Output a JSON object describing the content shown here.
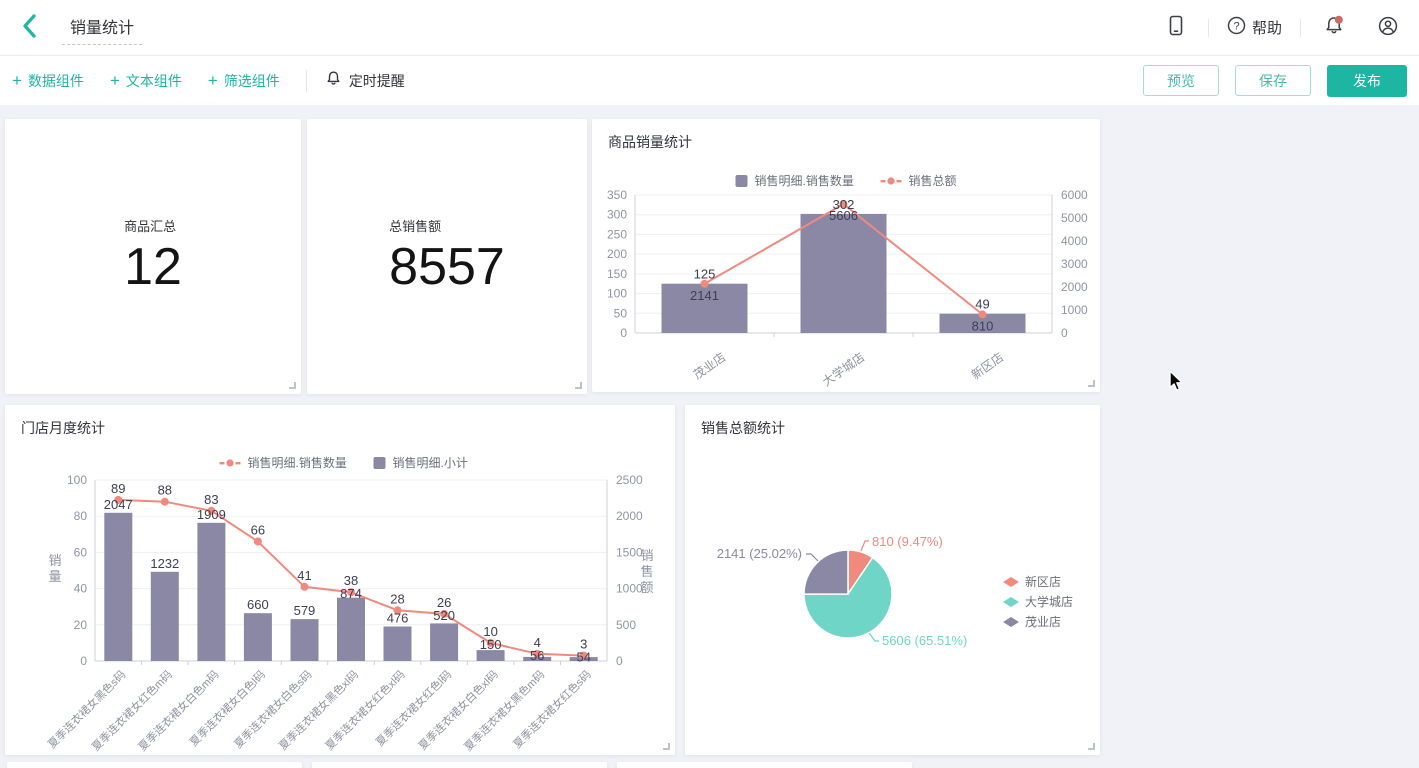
{
  "header": {
    "title": "销量统计",
    "help": "帮助"
  },
  "toolbar": {
    "components": [
      {
        "label": "数据组件"
      },
      {
        "label": "文本组件"
      },
      {
        "label": "筛选组件"
      }
    ],
    "timer": "定时提醒",
    "preview": "预览",
    "save": "保存",
    "publish": "发布"
  },
  "kpis": [
    {
      "title": "商品汇总",
      "value": "12"
    },
    {
      "title": "总销售额",
      "value": "8557"
    }
  ],
  "theme": {
    "accent_teal": "#1cb6a3",
    "bar_purple": "#8b88a6",
    "line_salmon": "#f08a7e",
    "pie_teal": "#6fd5c6",
    "notification_red": "#cf6a64",
    "canvas_bg": "#f1f2f7"
  },
  "chart_data": [
    {
      "id": "product-sales",
      "type": "bar",
      "title": "商品销量统计",
      "categories": [
        "茂业店",
        "大学城店",
        "新区店"
      ],
      "series": [
        {
          "name": "销售明细.销售数量",
          "type": "bar",
          "axis": "left",
          "color": "#8b88a6",
          "values": [
            125,
            302,
            49
          ]
        },
        {
          "name": "销售总额",
          "type": "line",
          "axis": "right",
          "color": "#f08a7e",
          "values": [
            2141,
            5606,
            810
          ]
        }
      ],
      "left_axis": {
        "min": 0,
        "max": 350,
        "step": 50
      },
      "right_axis": {
        "min": 0,
        "max": 6000,
        "step": 1000
      },
      "legend_position": "top",
      "grid": true
    },
    {
      "id": "store-monthly",
      "type": "bar",
      "title": "门店月度统计",
      "categories": [
        "夏季连衣裙女黑色s码",
        "夏季连衣裙女红色m码",
        "夏季连衣裙女白色m码",
        "夏季连衣裙女白色l码",
        "夏季连衣裙女白色s码",
        "夏季连衣裙女黑色xl码",
        "夏季连衣裙女红色xl码",
        "夏季连衣裙女红色l码",
        "夏季连衣裙女白色xl码",
        "夏季连衣裙女黑色m码",
        "夏季连衣裙女红色s码"
      ],
      "series": [
        {
          "name": "销售明细.销售数量",
          "type": "line",
          "axis": "left",
          "color": "#f08a7e",
          "values": [
            89,
            88,
            83,
            66,
            41,
            38,
            28,
            26,
            10,
            4,
            3
          ]
        },
        {
          "name": "销售明细.小计",
          "type": "bar",
          "axis": "right",
          "color": "#8b88a6",
          "values": [
            2047,
            1232,
            1909,
            660,
            579,
            874,
            476,
            520,
            150,
            56,
            54
          ]
        }
      ],
      "left_axis": {
        "min": 0,
        "max": 100,
        "step": 20,
        "title": "销量"
      },
      "right_axis": {
        "min": 0,
        "max": 2500,
        "step": 500,
        "title": "销售额"
      },
      "legend_position": "top",
      "grid": true
    },
    {
      "id": "sales-share",
      "type": "pie",
      "title": "销售总额统计",
      "slices": [
        {
          "name": "新区店",
          "value": 810,
          "pct": "9.47",
          "color": "#f08a7e"
        },
        {
          "name": "大学城店",
          "value": 5606,
          "pct": "65.51",
          "color": "#6fd5c6"
        },
        {
          "name": "茂业店",
          "value": 2141,
          "pct": "25.02",
          "color": "#8b88a6"
        }
      ],
      "legend_position": "right"
    }
  ]
}
